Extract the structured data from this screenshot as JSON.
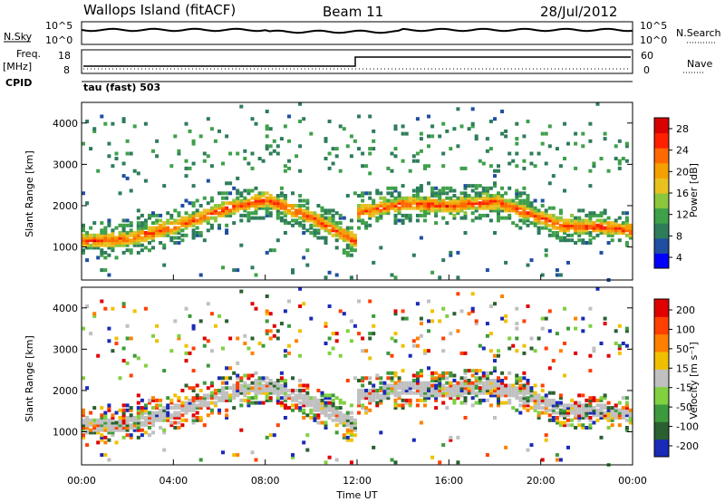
{
  "header": {
    "station": "Wallops Island (fitACF)",
    "beam": "Beam 11",
    "date": "28/Jul/2012"
  },
  "top_panel": {
    "left_label": "N.Sky",
    "left_ticks": [
      "10^5",
      "10^0"
    ],
    "right_label": "N.Search",
    "right_ticks": [
      "10^5",
      "10^0"
    ]
  },
  "freq_panel": {
    "left_label_1": "Freq.",
    "left_label_2": "[MHz]",
    "left_ticks": [
      "18",
      "8"
    ],
    "right_label": "Nave",
    "right_ticks": [
      "60",
      "0"
    ],
    "cpid_label": "CPID"
  },
  "mode_label": "tau (fast) 503",
  "x_axis": {
    "label": "Time UT",
    "ticks": [
      "00:00",
      "04:00",
      "08:00",
      "12:00",
      "16:00",
      "20:00",
      "00:00"
    ]
  },
  "colors": {
    "power_scale": [
      "#0000ff",
      "#1f4fa0",
      "#2e7d5a",
      "#3fa04a",
      "#8cc63c",
      "#e8c020",
      "#f5a000",
      "#ff6a00",
      "#ff2000",
      "#d80000"
    ],
    "velocity_scale": [
      "#1a2ab8",
      "#2a6030",
      "#3c9a3c",
      "#80d040",
      "#c0c0c0",
      "#f0c000",
      "#ff8000",
      "#ff4000",
      "#e00000"
    ]
  },
  "chart_data": [
    {
      "type": "heatmap",
      "title": "Power",
      "xlabel": "Time UT",
      "ylabel": "Slant Range [km]",
      "xlim": [
        "00:00",
        "24:00"
      ],
      "ylim": [
        200,
        4500
      ],
      "yticks": [
        "1000",
        "2000",
        "3000",
        "4000"
      ],
      "colorbar": {
        "label": "Power [dB]",
        "ticks": [
          "28",
          "24",
          "20",
          "16",
          "12",
          "8",
          "4"
        ],
        "range": [
          0,
          30
        ]
      },
      "bands": [
        {
          "name": "main",
          "time_h": [
            0,
            2,
            4,
            6,
            8,
            10,
            12
          ],
          "range_km": [
            1150,
            1200,
            1500,
            1900,
            2150,
            1700,
            1100
          ]
        },
        {
          "name": "after-12",
          "time_h": [
            12,
            14,
            16,
            18,
            19.5,
            21,
            22.5,
            24
          ],
          "range_km": [
            1850,
            2050,
            2000,
            2100,
            1800,
            1500,
            1500,
            1400
          ]
        }
      ]
    },
    {
      "type": "heatmap",
      "title": "Velocity",
      "xlabel": "Time UT",
      "ylabel": "Slant Range [km]",
      "xlim": [
        "00:00",
        "24:00"
      ],
      "ylim": [
        200,
        4500
      ],
      "yticks": [
        "1000",
        "2000",
        "3000",
        "4000"
      ],
      "colorbar": {
        "label": "Velocity [m s⁻¹]",
        "ticks": [
          "200",
          "100",
          "50",
          "15",
          "-15",
          "-50",
          "-100",
          "-200"
        ],
        "range": [
          -250,
          250
        ]
      }
    },
    {
      "type": "line",
      "title": "N.Sky / N.Search",
      "x_range_h": [
        0,
        24
      ],
      "note_level": "near 10^5 throughout"
    },
    {
      "type": "line",
      "title": "Freq / Nave",
      "series": [
        {
          "name": "Freq.",
          "x": [
            0,
            12,
            12,
            24
          ],
          "y": [
            10,
            10,
            17,
            17
          ]
        },
        {
          "name": "Nave",
          "x": [
            0,
            24
          ],
          "y": [
            8,
            8
          ]
        }
      ]
    }
  ]
}
